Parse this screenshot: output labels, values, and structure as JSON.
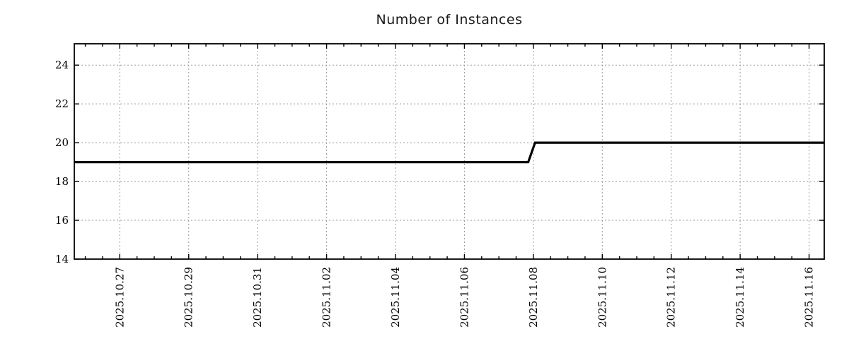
{
  "chart_data": {
    "type": "line",
    "title": "Number of Instances",
    "x_axis": {
      "unit": "date, days measured from 2025.10.27",
      "domain": [
        -1.32,
        20.44
      ],
      "major_ticks": [
        {
          "day": 0,
          "label": "2025.10.27"
        },
        {
          "day": 2,
          "label": "2025.10.29"
        },
        {
          "day": 4,
          "label": "2025.10.31"
        },
        {
          "day": 6,
          "label": "2025.11.02"
        },
        {
          "day": 8,
          "label": "2025.11.04"
        },
        {
          "day": 10,
          "label": "2025.11.06"
        },
        {
          "day": 12,
          "label": "2025.11.08"
        },
        {
          "day": 14,
          "label": "2025.11.10"
        },
        {
          "day": 16,
          "label": "2025.11.12"
        },
        {
          "day": 18,
          "label": "2025.11.14"
        },
        {
          "day": 20,
          "label": "2025.11.16"
        }
      ],
      "minor_tick_step": 0.5,
      "major_tick_every_days": 2
    },
    "y_axis": {
      "domain": [
        14,
        25.1
      ],
      "major_ticks": [
        14,
        16,
        18,
        20,
        22,
        24
      ]
    },
    "grid": {
      "show": true,
      "color": "#999999"
    },
    "legend": {
      "show": false
    },
    "series": [
      {
        "name": "instances",
        "color": "#000000",
        "width": 3.2,
        "points": [
          {
            "day": -1.32,
            "value": 19
          },
          {
            "day": 11.85,
            "value": 19
          },
          {
            "day": 12.05,
            "value": 20
          },
          {
            "day": 20.44,
            "value": 20
          }
        ],
        "description_visible": "constant 19 until just before 2025.11.08, steps up to 20 through 2025.11.16"
      }
    ]
  }
}
